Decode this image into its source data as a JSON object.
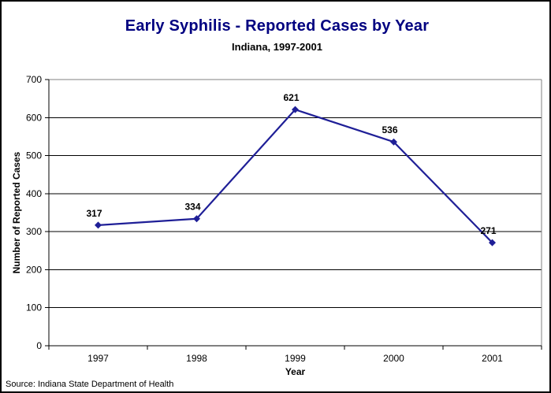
{
  "chart_data": {
    "type": "line",
    "title": "Early Syphilis - Reported Cases by Year",
    "subtitle": "Indiana, 1997-2001",
    "categories": [
      "1997",
      "1998",
      "1999",
      "2000",
      "2001"
    ],
    "values": [
      317,
      334,
      621,
      536,
      271
    ],
    "data_labels": [
      "317",
      "334",
      "621",
      "536",
      "271"
    ],
    "xlabel": "Year",
    "ylabel": "Number of Reported Cases",
    "ylim": [
      0,
      700
    ],
    "yticks": [
      0,
      100,
      200,
      300,
      400,
      500,
      600,
      700
    ],
    "grid": true,
    "legend": "none",
    "marker": "diamond",
    "source_note": "Source: Indiana State Department of Health",
    "colors": {
      "title": "#000080",
      "series": "#1f1f97",
      "data_label": "#000000",
      "axis": "#000000",
      "gridline": "#000000",
      "plot_border": "#808080",
      "tick_text": "#000000",
      "background": "#ffffff",
      "frame_border": "#000000"
    }
  }
}
